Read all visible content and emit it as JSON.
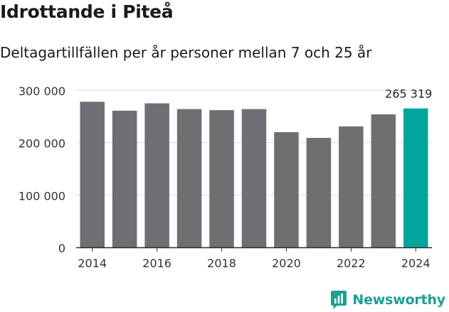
{
  "header": {
    "title": "Idrottande i Piteå",
    "subtitle": "Deltagartillfällen per år personer mellan 7 och 25 år"
  },
  "brand": {
    "name": "Newsworthy",
    "icon": "newsworthy-logo-icon"
  },
  "colors": {
    "bar": "#6e6e73",
    "highlight": "#00a69c",
    "grid": "#d9d9d9",
    "axis": "#2a2a2a",
    "brand": "#1f9e96"
  },
  "chart_data": {
    "type": "bar",
    "title": "Idrottande i Piteå",
    "subtitle": "Deltagartillfällen per år personer mellan 7 och 25 år",
    "xlabel": "",
    "ylabel": "",
    "categories": [
      "2014",
      "2015",
      "2016",
      "2017",
      "2018",
      "2019",
      "2020",
      "2021",
      "2022",
      "2023",
      "2024"
    ],
    "values": [
      278000,
      261000,
      275000,
      264000,
      262000,
      264000,
      220000,
      209000,
      231000,
      254000,
      265319
    ],
    "highlight_index": 10,
    "highlight_label": "265 319",
    "ylim": [
      0,
      300000
    ],
    "yticks": [
      0,
      100000,
      200000,
      300000
    ],
    "ytick_labels": [
      "0",
      "100 000",
      "200 000",
      "300 000"
    ],
    "xtick_labels": [
      "2014",
      "2016",
      "2018",
      "2020",
      "2022",
      "2024"
    ],
    "grid": true,
    "legend": "none"
  }
}
